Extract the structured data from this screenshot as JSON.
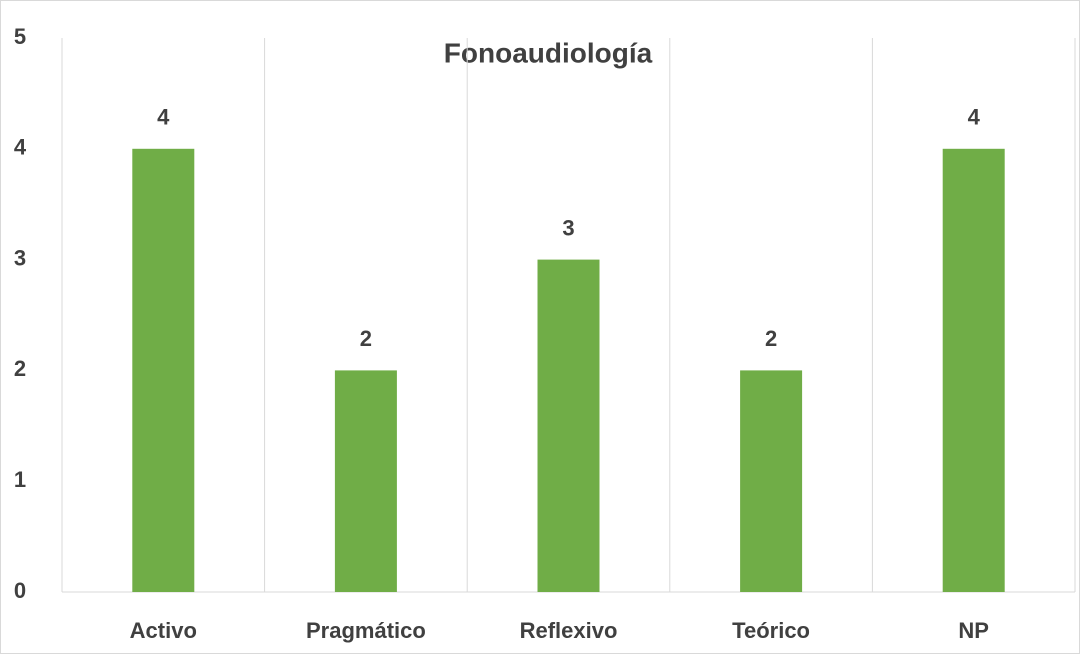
{
  "chart_data": {
    "type": "bar",
    "title": "Fonoaudiología",
    "categories": [
      "Activo",
      "Pragmático",
      "Reflexivo",
      "Teórico",
      "NP"
    ],
    "values": [
      4,
      2,
      3,
      2,
      4
    ],
    "color": "#70ad47",
    "ylim": [
      0,
      5
    ],
    "yticks": [
      0,
      1,
      2,
      3,
      4,
      5
    ]
  }
}
